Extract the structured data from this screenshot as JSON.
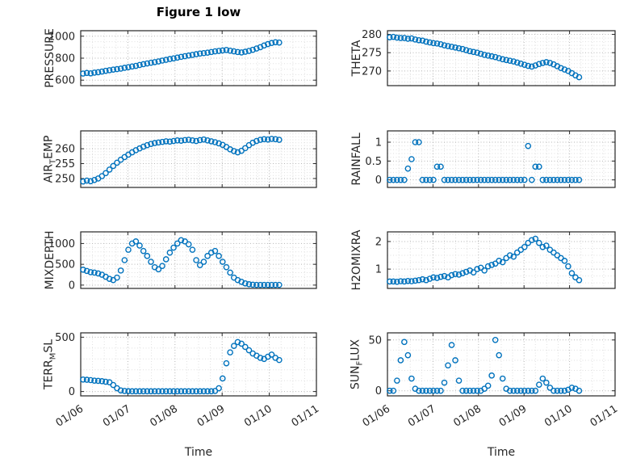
{
  "chart_data": {
    "type": "scatter",
    "title": "Figure 1 low",
    "xlabel": "Time",
    "grid": true,
    "minor_grid": true,
    "legend": "none",
    "marker_color": "#0072BD",
    "xlim": [
      0,
      5
    ],
    "x_ticks": [
      0,
      1,
      2,
      3,
      4,
      5
    ],
    "x_tick_labels": [
      "01/06",
      "01/07",
      "01/08",
      "01/09",
      "01/10",
      "01/11"
    ],
    "x_common": [
      0.05,
      0.13,
      0.21,
      0.29,
      0.37,
      0.45,
      0.53,
      0.61,
      0.69,
      0.77,
      0.85,
      0.93,
      1.01,
      1.09,
      1.17,
      1.25,
      1.33,
      1.41,
      1.49,
      1.57,
      1.65,
      1.73,
      1.81,
      1.89,
      1.97,
      2.05,
      2.13,
      2.21,
      2.29,
      2.37,
      2.45,
      2.53,
      2.61,
      2.69,
      2.77,
      2.85,
      2.93,
      3.01,
      3.09,
      3.17,
      3.25,
      3.33,
      3.41,
      3.49,
      3.57,
      3.65,
      3.73,
      3.81,
      3.89,
      3.97,
      4.05,
      4.13,
      4.21
    ],
    "charts": [
      {
        "name": "PRESSURE",
        "ylabel_parts": [
          [
            "PRESSURE",
            0
          ]
        ],
        "yticks": [
          600,
          800,
          1000
        ],
        "ylim": [
          550,
          1050
        ],
        "yminor": 50,
        "y": [
          660,
          665,
          662,
          668,
          672,
          678,
          685,
          690,
          696,
          700,
          705,
          712,
          718,
          724,
          730,
          738,
          745,
          752,
          758,
          764,
          770,
          778,
          785,
          792,
          798,
          805,
          812,
          818,
          824,
          830,
          836,
          842,
          846,
          850,
          856,
          862,
          866,
          870,
          874,
          868,
          862,
          856,
          852,
          858,
          866,
          876,
          888,
          900,
          915,
          928,
          938,
          945,
          942
        ]
      },
      {
        "name": "THETA",
        "ylabel_parts": [
          [
            "THETA",
            0
          ]
        ],
        "yticks": [
          270,
          275,
          280
        ],
        "ylim": [
          266,
          281
        ],
        "yminor": 1,
        "y": [
          279.2,
          279.3,
          279.1,
          279.0,
          279.0,
          278.8,
          278.9,
          278.6,
          278.4,
          278.3,
          278.0,
          277.8,
          277.6,
          277.5,
          277.3,
          277.0,
          276.8,
          276.6,
          276.4,
          276.2,
          276.0,
          275.7,
          275.4,
          275.2,
          275.0,
          274.7,
          274.4,
          274.2,
          274.0,
          273.8,
          273.5,
          273.2,
          273.0,
          272.8,
          272.6,
          272.3,
          272.0,
          271.7,
          271.4,
          271.2,
          271.5,
          271.9,
          272.2,
          272.4,
          272.2,
          271.8,
          271.3,
          270.8,
          270.4,
          270.0,
          269.4,
          268.8,
          268.3
        ]
      },
      {
        "name": "AIR_TEMP",
        "ylabel_parts": [
          [
            "AIR",
            0
          ],
          [
            "T",
            1
          ],
          [
            "EMP",
            0
          ]
        ],
        "yticks": [
          250,
          255,
          260
        ],
        "ylim": [
          247,
          266
        ],
        "yminor": 1,
        "y": [
          249.0,
          249.3,
          249.1,
          249.5,
          250.0,
          250.8,
          251.8,
          253.0,
          254.2,
          255.3,
          256.3,
          257.2,
          258.0,
          258.8,
          259.5,
          260.1,
          260.7,
          261.2,
          261.6,
          261.9,
          262.1,
          262.3,
          262.5,
          262.4,
          262.6,
          262.8,
          262.7,
          262.9,
          263.0,
          262.8,
          262.6,
          262.9,
          263.1,
          262.8,
          262.5,
          262.2,
          261.8,
          261.3,
          260.6,
          259.8,
          259.2,
          258.8,
          259.3,
          260.2,
          261.2,
          262.0,
          262.6,
          263.0,
          263.2,
          263.1,
          263.3,
          263.2,
          263.0
        ]
      },
      {
        "name": "RAINFALL",
        "ylabel_parts": [
          [
            "RAINFALL",
            0
          ]
        ],
        "yticks": [
          0,
          0.5,
          1
        ],
        "ylim": [
          -0.2,
          1.3
        ],
        "yminor": 0.1,
        "y": [
          0,
          0,
          0,
          0,
          0,
          0.3,
          0.55,
          1,
          1,
          0,
          0,
          0,
          0,
          0.35,
          0.35,
          0,
          0,
          0,
          0,
          0,
          0,
          0,
          0,
          0,
          0,
          0,
          0,
          0,
          0,
          0,
          0,
          0,
          0,
          0,
          0,
          0,
          0,
          0,
          0.9,
          0,
          0.35,
          0.35,
          0,
          0,
          0,
          0,
          0,
          0,
          0,
          0,
          0,
          0,
          0
        ]
      },
      {
        "name": "MIXDEPTH",
        "ylabel_parts": [
          [
            "MIXDEPTH",
            0
          ]
        ],
        "yticks": [
          0,
          500,
          1000
        ],
        "ylim": [
          -80,
          1280
        ],
        "yminor": 100,
        "y": [
          370,
          340,
          310,
          300,
          280,
          250,
          200,
          150,
          120,
          180,
          350,
          600,
          850,
          1000,
          1050,
          950,
          820,
          700,
          560,
          430,
          380,
          460,
          620,
          780,
          900,
          1000,
          1080,
          1050,
          980,
          850,
          600,
          480,
          560,
          700,
          780,
          820,
          700,
          560,
          430,
          300,
          180,
          120,
          80,
          40,
          20,
          10,
          5,
          5,
          5,
          5,
          5,
          5,
          5
        ]
      },
      {
        "name": "H2OMIXRA",
        "ylabel_parts": [
          [
            "H2OMIXRA",
            0
          ]
        ],
        "yticks": [
          1,
          2
        ],
        "ylim": [
          0.3,
          2.35
        ],
        "yminor": 0.25,
        "y": [
          0.55,
          0.55,
          0.54,
          0.56,
          0.55,
          0.57,
          0.56,
          0.58,
          0.6,
          0.63,
          0.6,
          0.65,
          0.7,
          0.68,
          0.72,
          0.75,
          0.7,
          0.78,
          0.82,
          0.8,
          0.85,
          0.9,
          0.95,
          0.88,
          1.0,
          1.05,
          0.95,
          1.1,
          1.15,
          1.2,
          1.3,
          1.25,
          1.4,
          1.5,
          1.45,
          1.6,
          1.7,
          1.8,
          1.95,
          2.05,
          2.1,
          1.95,
          1.8,
          1.85,
          1.7,
          1.6,
          1.5,
          1.4,
          1.3,
          1.1,
          0.85,
          0.7,
          0.6
        ]
      },
      {
        "name": "TERR_MSL",
        "ylabel_parts": [
          [
            "TERR",
            0
          ],
          [
            "M",
            1
          ],
          [
            "SL",
            0
          ]
        ],
        "yticks": [
          0,
          500
        ],
        "ylim": [
          -40,
          540
        ],
        "yminor": 100,
        "y": [
          110,
          108,
          105,
          100,
          98,
          95,
          90,
          85,
          60,
          30,
          10,
          5,
          3,
          2,
          2,
          2,
          2,
          2,
          2,
          2,
          2,
          2,
          2,
          2,
          2,
          2,
          2,
          2,
          2,
          2,
          2,
          2,
          2,
          2,
          2,
          5,
          30,
          120,
          260,
          360,
          420,
          455,
          440,
          410,
          380,
          350,
          330,
          310,
          300,
          320,
          340,
          310,
          290
        ]
      },
      {
        "name": "SUN_FLUX",
        "ylabel_parts": [
          [
            "SUN",
            0
          ],
          [
            "F",
            1
          ],
          [
            "LUX",
            0
          ]
        ],
        "yticks": [
          0,
          50
        ],
        "ylim": [
          -5,
          57
        ],
        "yminor": 10,
        "y": [
          0,
          0,
          10,
          30,
          48,
          35,
          12,
          2,
          0,
          0,
          0,
          0,
          0,
          0,
          0,
          8,
          25,
          45,
          30,
          10,
          0,
          0,
          0,
          0,
          0,
          0,
          2,
          5,
          15,
          50,
          35,
          12,
          2,
          0,
          0,
          0,
          0,
          0,
          0,
          0,
          0,
          6,
          12,
          8,
          3,
          0,
          0,
          0,
          0,
          1,
          3,
          2,
          0
        ]
      }
    ]
  }
}
